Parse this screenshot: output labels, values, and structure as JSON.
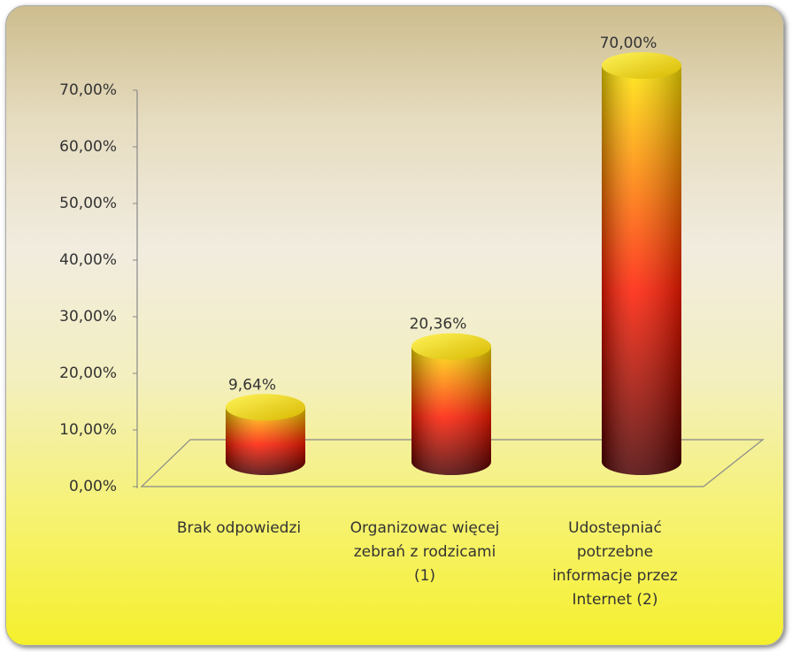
{
  "chart_data": {
    "type": "bar",
    "categories": [
      "Brak odpowiedzi",
      "Organizowac więcej zebrań z rodzicami (1)",
      "Udostepniać potrzebne informacje przez Internet (2)"
    ],
    "values": [
      9.64,
      20.36,
      70
    ],
    "value_labels": [
      "9,64%",
      "20,36%",
      "70,00%"
    ],
    "color": "#ff1a00",
    "ylim": [
      0,
      70
    ],
    "yticks": [
      {
        "value": 0,
        "label": "0,00%"
      },
      {
        "value": 10,
        "label": "10,00%"
      },
      {
        "value": 20,
        "label": "20,00%"
      },
      {
        "value": 30,
        "label": "30,00%"
      },
      {
        "value": 40,
        "label": "40,00%"
      },
      {
        "value": 50,
        "label": "50,00%"
      },
      {
        "value": 60,
        "label": "60,00%"
      },
      {
        "value": 70,
        "label": "70,00%"
      }
    ]
  }
}
